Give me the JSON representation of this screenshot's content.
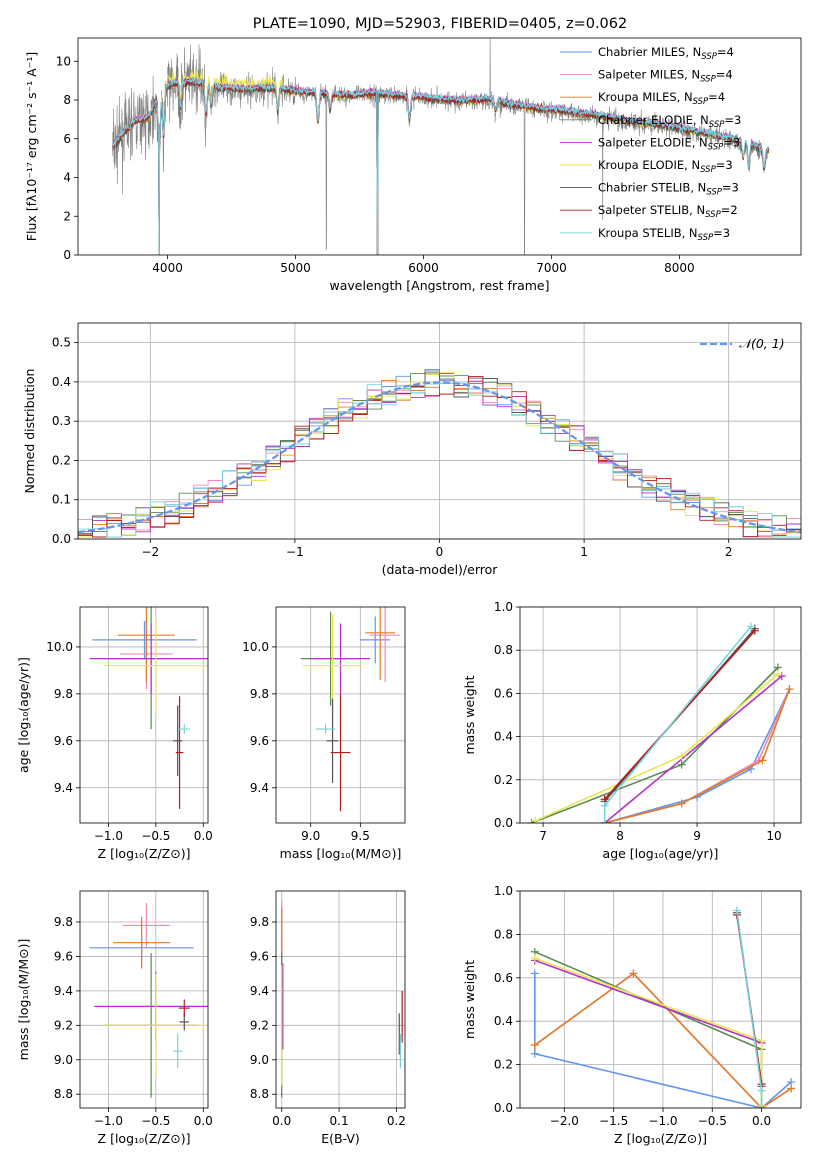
{
  "colors": {
    "chabrier_miles": "#6495ed",
    "salpeter_miles": "#f08cb4",
    "kroupa_miles": "#e07b28",
    "chabrier_elodie": "#5a8a50",
    "salpeter_elodie": "#b432c8",
    "kroupa_elodie": "#e8e650",
    "chabrier_stelib": "#555555",
    "salpeter_stelib": "#b41e1e",
    "kroupa_stelib": "#78d2dc",
    "data": "#808080",
    "normal": "#6495ed"
  },
  "chart_data": [
    {
      "id": "spectrum",
      "type": "line",
      "title": "PLATE=1090, MJD=52903, FIBERID=0405, z=0.062",
      "xlabel": "wavelength [Angstrom, rest frame]",
      "ylabel": "Flux [fλ10⁻¹⁷ erg cm⁻² s⁻¹ A⁻¹]",
      "xlim": [
        3300,
        8950
      ],
      "ylim": [
        0,
        11.2
      ],
      "xticks": [
        4000,
        5000,
        6000,
        7000,
        8000
      ],
      "yticks": [
        0,
        2,
        4,
        6,
        8,
        10
      ],
      "legend_position": "top-right",
      "legend": [
        {
          "label": "Chabrier MILES, N",
          "sub": "SSP",
          "tail": "=4",
          "color_key": "chabrier_miles"
        },
        {
          "label": "Salpeter MILES, N",
          "sub": "SSP",
          "tail": "=4",
          "color_key": "salpeter_miles"
        },
        {
          "label": "Kroupa MILES, N",
          "sub": "SSP",
          "tail": "=4",
          "color_key": "kroupa_miles"
        },
        {
          "label": "Chabrier ELODIE, N",
          "sub": "SSP",
          "tail": "=3",
          "color_key": "chabrier_elodie"
        },
        {
          "label": "Salpeter ELODIE, N",
          "sub": "SSP",
          "tail": "=3",
          "color_key": "salpeter_elodie"
        },
        {
          "label": "Kroupa ELODIE, N",
          "sub": "SSP",
          "tail": "=3",
          "color_key": "kroupa_elodie"
        },
        {
          "label": "Chabrier STELIB, N",
          "sub": "SSP",
          "tail": "=3",
          "color_key": "chabrier_stelib"
        },
        {
          "label": "Salpeter STELIB, N",
          "sub": "SSP",
          "tail": "=2",
          "color_key": "salpeter_stelib"
        },
        {
          "label": "Kroupa STELIB, N",
          "sub": "SSP",
          "tail": "=3",
          "color_key": "kroupa_stelib"
        }
      ],
      "continuum_nodes": [
        [
          3570,
          5.5
        ],
        [
          3650,
          6.2
        ],
        [
          3750,
          6.9
        ],
        [
          3850,
          7.0
        ],
        [
          3950,
          8.5
        ],
        [
          4050,
          8.8
        ],
        [
          4200,
          8.9
        ],
        [
          4400,
          8.6
        ],
        [
          4600,
          8.5
        ],
        [
          4850,
          8.6
        ],
        [
          5000,
          8.4
        ],
        [
          5200,
          8.3
        ],
        [
          5400,
          8.2
        ],
        [
          5600,
          8.3
        ],
        [
          5800,
          8.2
        ],
        [
          6000,
          8.1
        ],
        [
          6300,
          7.9
        ],
        [
          6500,
          8.0
        ],
        [
          6700,
          7.7
        ],
        [
          6900,
          7.5
        ],
        [
          7100,
          7.4
        ],
        [
          7400,
          7.1
        ],
        [
          7700,
          6.8
        ],
        [
          8000,
          6.5
        ],
        [
          8300,
          6.1
        ],
        [
          8600,
          5.6
        ],
        [
          8700,
          5.3
        ]
      ],
      "absorption_lines": [
        [
          3934,
          -3.0
        ],
        [
          3968,
          -2.5
        ],
        [
          4102,
          -1.2
        ],
        [
          4300,
          -1.5
        ],
        [
          4340,
          -1.0
        ],
        [
          4861,
          -1.2
        ],
        [
          5175,
          -1.5
        ],
        [
          5270,
          -0.8
        ],
        [
          5890,
          -1.2
        ],
        [
          6563,
          -0.5
        ],
        [
          8498,
          -0.8
        ],
        [
          8542,
          -1.2
        ],
        [
          8662,
          -1.0
        ]
      ],
      "spikes": [
        [
          3935,
          0.0
        ],
        [
          5240,
          0.3
        ],
        [
          5640,
          0.0
        ],
        [
          6790,
          0.0
        ],
        [
          7400,
          1.8
        ],
        [
          6520,
          11.2
        ]
      ]
    },
    {
      "id": "residuals",
      "type": "histogram",
      "xlabel": "(data-model)/error",
      "ylabel": "Normed distribution",
      "xlim": [
        -2.5,
        2.5
      ],
      "ylim": [
        0,
        0.55
      ],
      "xticks": [
        -2,
        -1,
        0,
        1,
        2
      ],
      "yticks": [
        0.0,
        0.1,
        0.2,
        0.3,
        0.4,
        0.5
      ],
      "bin_width": 0.1,
      "legend_position": "top-right",
      "normal_label": "𝒩(0, 1)"
    },
    {
      "id": "age_vs_Z",
      "type": "errorbar",
      "xlabel": "Z [log₁₀(Z/Z⊙)]",
      "ylabel": "age  [log₁₀(age/yr)]",
      "xlim": [
        -1.3,
        0.05
      ],
      "ylim": [
        9.25,
        10.17
      ],
      "xticks": [
        -1.0,
        -0.5,
        0.0
      ],
      "yticks": [
        9.4,
        9.6,
        9.8,
        10.0
      ],
      "points": [
        {
          "key": "chabrier_miles",
          "x": -0.62,
          "xerr": 0.55,
          "y": 10.03,
          "yerr": 0.08
        },
        {
          "key": "salpeter_miles",
          "x": -0.6,
          "xerr": 0.28,
          "y": 9.97,
          "yerr": 0.15
        },
        {
          "key": "kroupa_miles",
          "x": -0.6,
          "xerr": 0.3,
          "y": 10.05,
          "yerr": 0.2
        },
        {
          "key": "chabrier_elodie",
          "x": -0.55,
          "xerr": 0.5,
          "y": 9.95,
          "yerr": 0.3
        },
        {
          "key": "salpeter_elodie",
          "x": -0.55,
          "xerr": 0.65,
          "y": 9.95,
          "yerr": 0.15
        },
        {
          "key": "kroupa_elodie",
          "x": -0.5,
          "xerr": 0.55,
          "y": 9.92,
          "yerr": 0.2
        },
        {
          "key": "chabrier_stelib",
          "x": -0.27,
          "xerr": 0.05,
          "y": 9.6,
          "yerr": 0.15
        },
        {
          "key": "salpeter_stelib",
          "x": -0.25,
          "xerr": 0.04,
          "y": 9.55,
          "yerr": 0.24
        },
        {
          "key": "kroupa_stelib",
          "x": -0.2,
          "xerr": 0.06,
          "y": 9.65,
          "yerr": 0.02
        }
      ]
    },
    {
      "id": "age_vs_mass",
      "type": "errorbar",
      "xlabel": "mass [log₁₀(M/M⊙)]",
      "ylabel": "",
      "xlim": [
        8.65,
        9.95
      ],
      "ylim": [
        9.25,
        10.17
      ],
      "xticks": [
        9.0,
        9.5
      ],
      "yticks": [
        9.4,
        9.6,
        9.8,
        10.0
      ],
      "points": [
        {
          "key": "chabrier_miles",
          "x": 9.65,
          "xerr": 0.15,
          "y": 10.03,
          "yerr": 0.1
        },
        {
          "key": "salpeter_miles",
          "x": 9.75,
          "xerr": 0.15,
          "y": 10.05,
          "yerr": 0.2
        },
        {
          "key": "kroupa_miles",
          "x": 9.7,
          "xerr": 0.15,
          "y": 10.06,
          "yerr": 0.2
        },
        {
          "key": "chabrier_elodie",
          "x": 9.2,
          "xerr": 0.3,
          "y": 9.95,
          "yerr": 0.2
        },
        {
          "key": "salpeter_elodie",
          "x": 9.3,
          "xerr": 0.3,
          "y": 9.95,
          "yerr": 0.15
        },
        {
          "key": "kroupa_elodie",
          "x": 9.22,
          "xerr": 0.3,
          "y": 9.92,
          "yerr": 0.22
        },
        {
          "key": "chabrier_stelib",
          "x": 9.22,
          "xerr": 0.06,
          "y": 9.6,
          "yerr": 0.18
        },
        {
          "key": "salpeter_stelib",
          "x": 9.3,
          "xerr": 0.1,
          "y": 9.55,
          "yerr": 0.25
        },
        {
          "key": "kroupa_stelib",
          "x": 9.15,
          "xerr": 0.1,
          "y": 9.65,
          "yerr": 0.02
        }
      ]
    },
    {
      "id": "weight_vs_age",
      "type": "line",
      "xlabel": "age  [log₁₀(age/yr)]",
      "ylabel": "mass weight",
      "xlim": [
        6.7,
        10.35
      ],
      "ylim": [
        0,
        1
      ],
      "xticks": [
        7,
        8,
        9,
        10
      ],
      "yticks": [
        0.0,
        0.2,
        0.4,
        0.6,
        0.8,
        1.0
      ],
      "series": [
        {
          "key": "chabrier_miles",
          "x": [
            7.8,
            9.0,
            9.7,
            10.2
          ],
          "y": [
            0.0,
            0.12,
            0.25,
            0.62
          ]
        },
        {
          "key": "salpeter_miles",
          "x": [
            7.8,
            8.8,
            9.8,
            10.2
          ],
          "y": [
            0.0,
            0.09,
            0.29,
            0.62
          ]
        },
        {
          "key": "kroupa_miles",
          "x": [
            7.8,
            8.8,
            9.85,
            10.2
          ],
          "y": [
            0.0,
            0.09,
            0.29,
            0.62
          ]
        },
        {
          "key": "chabrier_elodie",
          "x": [
            6.85,
            8.8,
            10.05
          ],
          "y": [
            0.0,
            0.27,
            0.72
          ]
        },
        {
          "key": "salpeter_elodie",
          "x": [
            7.8,
            10.1
          ],
          "y": [
            0.0,
            0.68
          ]
        },
        {
          "key": "kroupa_elodie",
          "x": [
            6.9,
            8.8,
            10.05
          ],
          "y": [
            0.01,
            0.31,
            0.69
          ]
        },
        {
          "key": "chabrier_stelib",
          "x": [
            7.8,
            9.75
          ],
          "y": [
            0.1,
            0.9
          ]
        },
        {
          "key": "salpeter_stelib",
          "x": [
            7.8,
            9.75
          ],
          "y": [
            0.11,
            0.89
          ]
        },
        {
          "key": "kroupa_stelib",
          "x": [
            7.8,
            7.8,
            9.7
          ],
          "y": [
            0.0,
            0.08,
            0.91
          ]
        }
      ]
    },
    {
      "id": "mass_vs_Z",
      "type": "errorbar",
      "xlabel": "Z [log₁₀(Z/Z⊙)]",
      "ylabel": "mass [log₁₀(M/M⊙)]",
      "xlim": [
        -1.3,
        0.05
      ],
      "ylim": [
        8.72,
        9.98
      ],
      "xticks": [
        -1.0,
        -0.5,
        0.0
      ],
      "yticks": [
        8.8,
        9.0,
        9.2,
        9.4,
        9.6,
        9.8
      ],
      "points": [
        {
          "key": "chabrier_miles",
          "x": -0.65,
          "xerr": 0.55,
          "y": 9.65,
          "yerr": 0.08
        },
        {
          "key": "salpeter_miles",
          "x": -0.6,
          "xerr": 0.25,
          "y": 9.78,
          "yerr": 0.13
        },
        {
          "key": "kroupa_miles",
          "x": -0.65,
          "xerr": 0.3,
          "y": 9.68,
          "yerr": 0.15
        },
        {
          "key": "chabrier_elodie",
          "x": -0.55,
          "xerr": 0.5,
          "y": 9.2,
          "yerr": 0.42
        },
        {
          "key": "salpeter_elodie",
          "x": -0.5,
          "xerr": 0.65,
          "y": 9.31,
          "yerr": 0.2
        },
        {
          "key": "kroupa_elodie",
          "x": -0.5,
          "xerr": 0.55,
          "y": 9.2,
          "yerr": 0.3
        },
        {
          "key": "chabrier_stelib",
          "x": -0.2,
          "xerr": 0.05,
          "y": 9.22,
          "yerr": 0.05
        },
        {
          "key": "salpeter_stelib",
          "x": -0.2,
          "xerr": 0.06,
          "y": 9.3,
          "yerr": 0.05
        },
        {
          "key": "kroupa_stelib",
          "x": -0.27,
          "xerr": 0.05,
          "y": 9.05,
          "yerr": 0.1
        }
      ]
    },
    {
      "id": "mass_vs_EBV",
      "type": "errorbar",
      "xlabel": "E(B-V)",
      "ylabel": "",
      "xlim": [
        -0.01,
        0.215
      ],
      "ylim": [
        8.72,
        9.98
      ],
      "xticks": [
        0.0,
        0.1,
        0.2
      ],
      "yticks": [
        8.8,
        9.0,
        9.2,
        9.4,
        9.6,
        9.8
      ],
      "points": [
        {
          "key": "chabrier_miles",
          "x": 0.0,
          "xerr": 0.0,
          "y": 9.65,
          "yerr": 0.08
        },
        {
          "key": "salpeter_miles",
          "x": 0.0,
          "xerr": 0.0,
          "y": 9.78,
          "yerr": 0.15
        },
        {
          "key": "kroupa_miles",
          "x": 0.0,
          "xerr": 0.0,
          "y": 9.7,
          "yerr": 0.18
        },
        {
          "key": "chabrier_elodie",
          "x": 0.0,
          "xerr": 0.0,
          "y": 9.2,
          "yerr": 0.42
        },
        {
          "key": "salpeter_elodie",
          "x": 0.002,
          "xerr": 0.0,
          "y": 9.31,
          "yerr": 0.25
        },
        {
          "key": "kroupa_elodie",
          "x": 0.0,
          "xerr": 0.0,
          "y": 9.2,
          "yerr": 0.35
        },
        {
          "key": "chabrier_stelib",
          "x": 0.205,
          "xerr": 0.0,
          "y": 9.15,
          "yerr": 0.12
        },
        {
          "key": "salpeter_stelib",
          "x": 0.21,
          "xerr": 0.0,
          "y": 9.25,
          "yerr": 0.15
        },
        {
          "key": "kroupa_stelib",
          "x": 0.207,
          "xerr": 0.0,
          "y": 9.05,
          "yerr": 0.1
        }
      ]
    },
    {
      "id": "weight_vs_Z",
      "type": "line",
      "xlabel": "Z [log₁₀(Z/Z⊙)]",
      "ylabel": "mass weight",
      "xlim": [
        -2.45,
        0.4
      ],
      "ylim": [
        0,
        1
      ],
      "xticks": [
        -2.0,
        -1.5,
        -1.0,
        -0.5,
        0.0
      ],
      "yticks": [
        0.0,
        0.2,
        0.4,
        0.6,
        0.8,
        1.0
      ],
      "series": [
        {
          "key": "chabrier_miles",
          "x": [
            -2.3,
            -2.3,
            0.0,
            0.3
          ],
          "y": [
            0.62,
            0.25,
            0.0,
            0.12
          ]
        },
        {
          "key": "salpeter_miles",
          "x": [
            -2.3,
            -1.3,
            0.0,
            0.3
          ],
          "y": [
            0.29,
            0.62,
            0.0,
            0.09
          ]
        },
        {
          "key": "kroupa_miles",
          "x": [
            -2.3,
            -1.3,
            0.0,
            0.3
          ],
          "y": [
            0.29,
            0.62,
            0.0,
            0.09
          ]
        },
        {
          "key": "chabrier_elodie",
          "x": [
            -2.3,
            0.0,
            0.0
          ],
          "y": [
            0.72,
            0.27,
            0.0
          ]
        },
        {
          "key": "salpeter_elodie",
          "x": [
            -2.3,
            0.0
          ],
          "y": [
            0.68,
            0.3
          ]
        },
        {
          "key": "kroupa_elodie",
          "x": [
            -2.3,
            0.0,
            0.0
          ],
          "y": [
            0.69,
            0.31,
            0.01
          ]
        },
        {
          "key": "chabrier_stelib",
          "x": [
            -0.25,
            0.0
          ],
          "y": [
            0.9,
            0.1
          ]
        },
        {
          "key": "salpeter_stelib",
          "x": [
            -0.25,
            0.0
          ],
          "y": [
            0.89,
            0.11
          ]
        },
        {
          "key": "kroupa_stelib",
          "x": [
            -0.25,
            0.0,
            0.0
          ],
          "y": [
            0.91,
            0.08,
            0.0
          ]
        }
      ]
    }
  ]
}
